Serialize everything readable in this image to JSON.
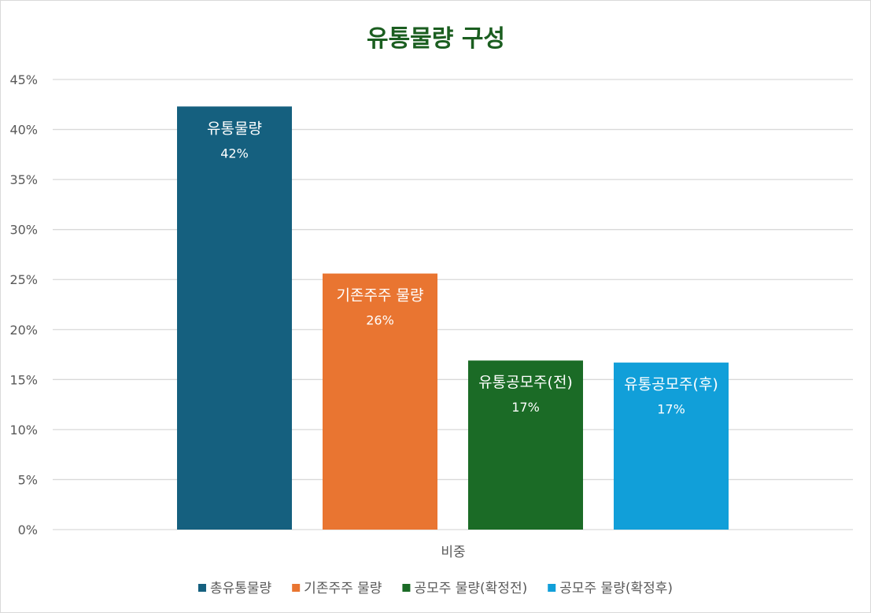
{
  "colors": {
    "title": "#1b5e20",
    "grid": "#d9d9d9",
    "axis_text": "#595959"
  },
  "chart_data": {
    "type": "bar",
    "title": "유통물량 구성",
    "categories": [
      "비중"
    ],
    "ylim": [
      0,
      45
    ],
    "y_ticks": [
      "0%",
      "5%",
      "10%",
      "15%",
      "20%",
      "25%",
      "30%",
      "35%",
      "40%",
      "45%"
    ],
    "grid": true,
    "legend_position": "bottom",
    "series": [
      {
        "name": "총유통물량",
        "values": [
          42.3
        ],
        "data_label_name": "유통물량",
        "data_label_value": "42%",
        "color": "#15607f"
      },
      {
        "name": "기존주주 물량",
        "values": [
          25.6
        ],
        "data_label_name": "기존주주 물량",
        "data_label_value": "26%",
        "color": "#e97531"
      },
      {
        "name": "공모주 물량(확정전)",
        "values": [
          16.9
        ],
        "data_label_name": "유통공모주(전)",
        "data_label_value": "17%",
        "color": "#1b6b26"
      },
      {
        "name": "공모주 물량(확정후)",
        "values": [
          16.7
        ],
        "data_label_name": "유통공모주(후)",
        "data_label_value": "17%",
        "color": "#119fd9"
      }
    ]
  }
}
